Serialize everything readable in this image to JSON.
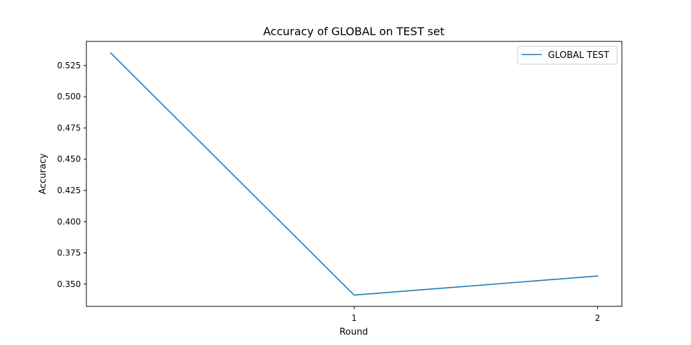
{
  "chart_data": {
    "type": "line",
    "title": "Accuracy of GLOBAL on TEST set",
    "xlabel": "Round",
    "ylabel": "Accuracy",
    "x": [
      0,
      1,
      2
    ],
    "xticks": [
      1,
      2
    ],
    "xtick_labels": [
      "1",
      "2"
    ],
    "yticks": [
      0.35,
      0.375,
      0.4,
      0.425,
      0.45,
      0.475,
      0.5,
      0.525
    ],
    "ytick_labels": [
      "0.350",
      "0.375",
      "0.400",
      "0.425",
      "0.450",
      "0.475",
      "0.500",
      "0.525"
    ],
    "xlim": [
      -0.1,
      2.1
    ],
    "ylim": [
      0.3322,
      0.5443
    ],
    "grid": false,
    "legend_position": "top-right",
    "series": [
      {
        "name": "GLOBAL TEST",
        "color": "#1f77b4",
        "values": [
          0.535,
          0.3412,
          0.3565
        ]
      }
    ]
  }
}
